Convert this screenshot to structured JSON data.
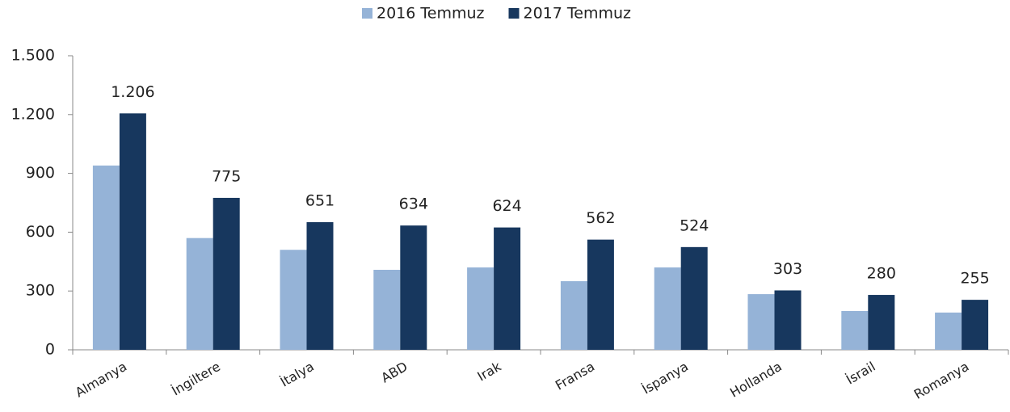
{
  "chart_data": {
    "type": "bar",
    "categories": [
      "Almanya",
      "İngiltere",
      "İtalya",
      "ABD",
      "Irak",
      "Fransa",
      "İspanya",
      "Hollanda",
      "İsrail",
      "Romanya"
    ],
    "series": [
      {
        "name": "2016 Temmuz",
        "color": "#95b3d7",
        "values": [
          940,
          570,
          510,
          408,
          420,
          350,
          420,
          284,
          198,
          190
        ]
      },
      {
        "name": "2017 Temmuz",
        "color": "#17375e",
        "values": [
          1206,
          775,
          651,
          634,
          624,
          562,
          524,
          303,
          280,
          255
        ],
        "value_labels": [
          "1.206",
          "775",
          "651",
          "634",
          "624",
          "562",
          "524",
          "303",
          "280",
          "255"
        ]
      }
    ],
    "ylim": [
      0,
      1500
    ],
    "yticks": [
      0,
      300,
      600,
      900,
      {
        "value": 1200,
        "label": "1.200"
      },
      {
        "value": 1500,
        "label": "1.500"
      }
    ],
    "legend": "top"
  }
}
